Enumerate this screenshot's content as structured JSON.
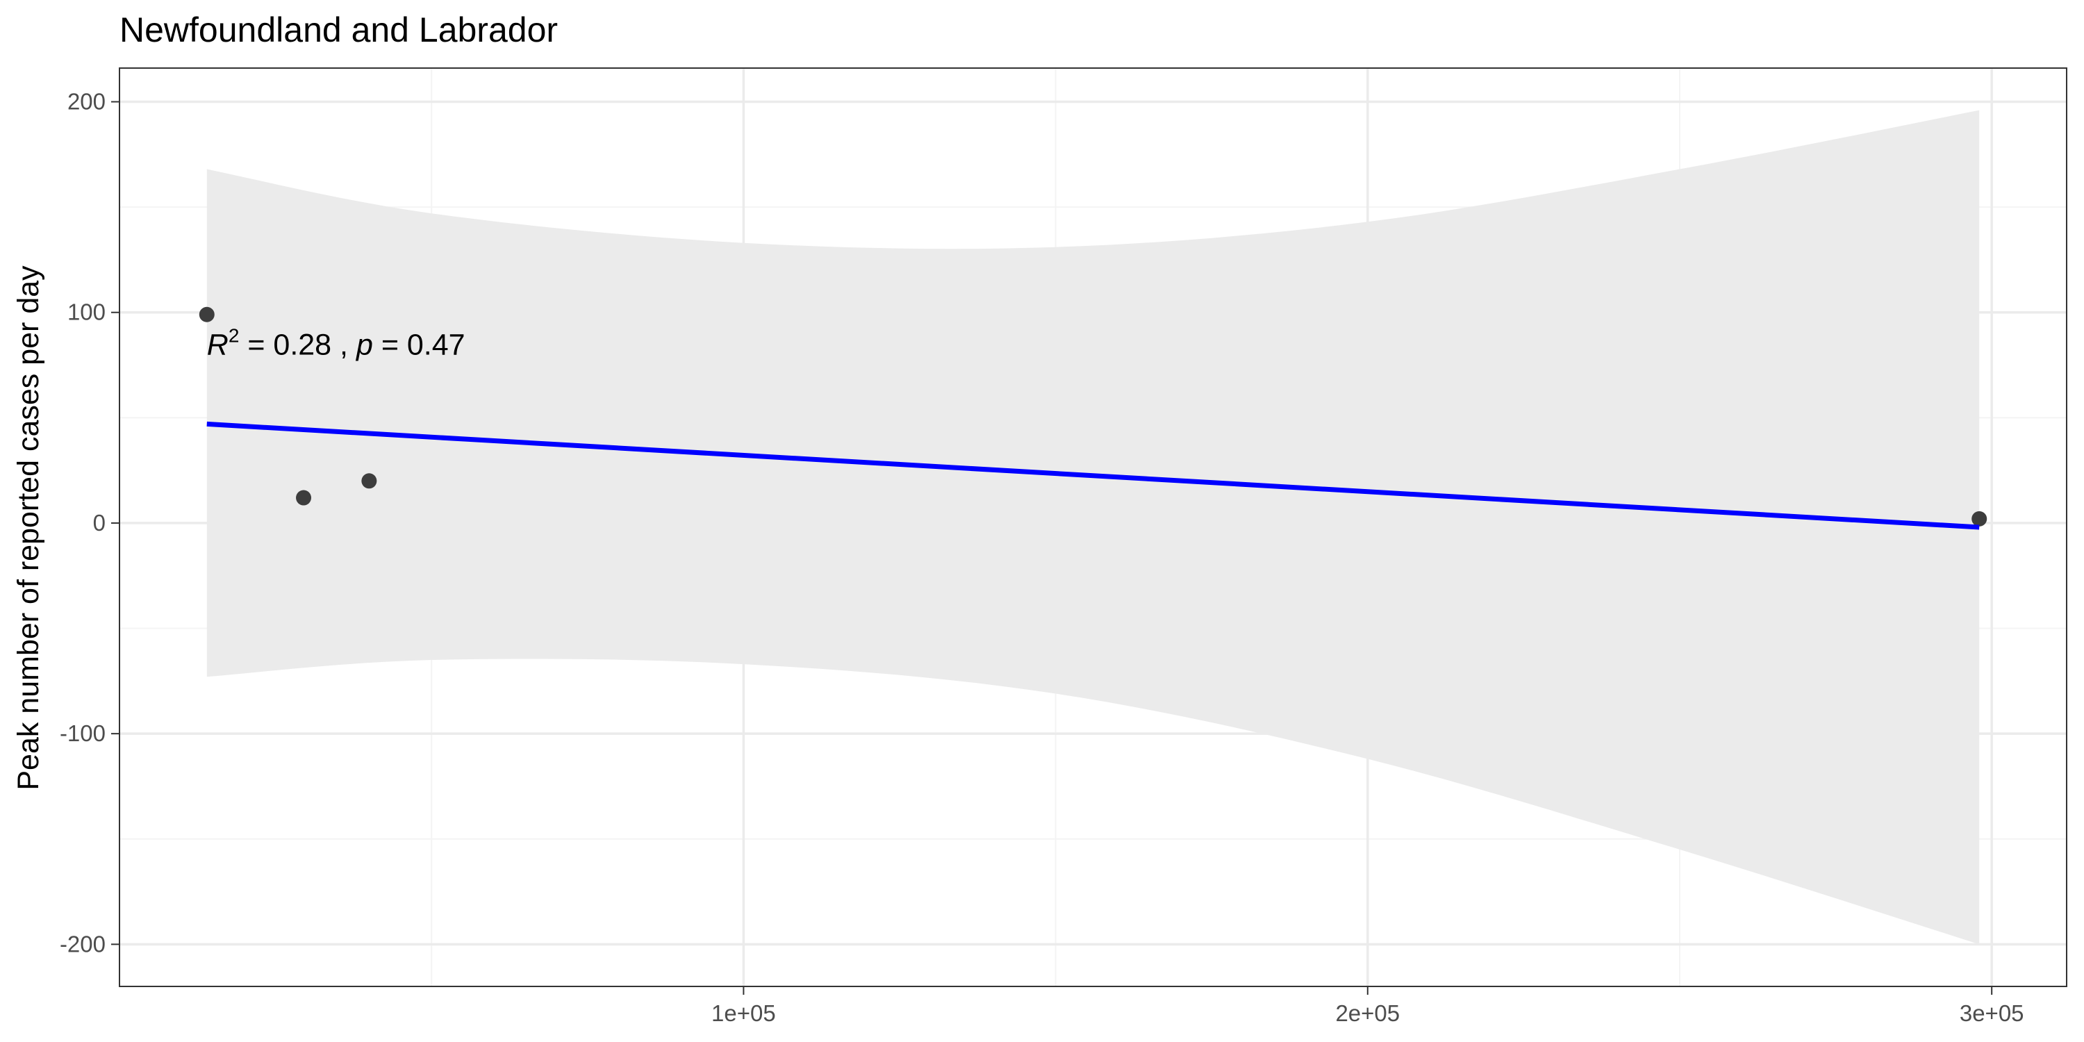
{
  "chart_data": {
    "type": "scatter",
    "title": "Newfoundland and Labrador",
    "xlabel": "",
    "ylabel": "Peak number of reported cases per day",
    "xlim": [
      0,
      312000
    ],
    "ylim": [
      -220,
      216
    ],
    "x_ticks": [
      {
        "value": 100000,
        "label": "1e+05"
      },
      {
        "value": 200000,
        "label": "2e+05"
      },
      {
        "value": 300000,
        "label": "3e+05"
      }
    ],
    "y_ticks": [
      {
        "value": 200,
        "label": "200"
      },
      {
        "value": 100,
        "label": "100"
      },
      {
        "value": 0,
        "label": "0"
      },
      {
        "value": -100,
        "label": "-100"
      },
      {
        "value": -200,
        "label": "-200"
      }
    ],
    "points": [
      {
        "x": 14000,
        "y": 99
      },
      {
        "x": 29500,
        "y": 12
      },
      {
        "x": 40000,
        "y": 20
      },
      {
        "x": 298000,
        "y": 2
      }
    ],
    "fit": {
      "type": "linear",
      "x_start": 14000,
      "y_start": 47,
      "x_end": 298000,
      "y_end": -2,
      "color": "#0000ff",
      "confidence_band": [
        {
          "x": 14000,
          "lo": -73,
          "hi": 168
        },
        {
          "x": 50000,
          "lo": -65,
          "hi": 147
        },
        {
          "x": 100000,
          "lo": -67,
          "hi": 133
        },
        {
          "x": 150000,
          "lo": -81,
          "hi": 131
        },
        {
          "x": 200000,
          "lo": -112,
          "hi": 143
        },
        {
          "x": 250000,
          "lo": -155,
          "hi": 168
        },
        {
          "x": 298000,
          "lo": -200,
          "hi": 196
        }
      ]
    },
    "annotation": {
      "r2_symbol": "R",
      "r2_exp": "2",
      "r2_text": " = 0.28 , ",
      "p_symbol": "p",
      "p_text": " = 0.47",
      "x": 14000,
      "y": 80
    },
    "grid": true,
    "legend": "none",
    "colors": {
      "point": "#3d3d3d",
      "band": "#ebebeb",
      "grid_major": "#ebebeb",
      "grid_minor": "#f4f4f4",
      "border": "#333333"
    }
  }
}
